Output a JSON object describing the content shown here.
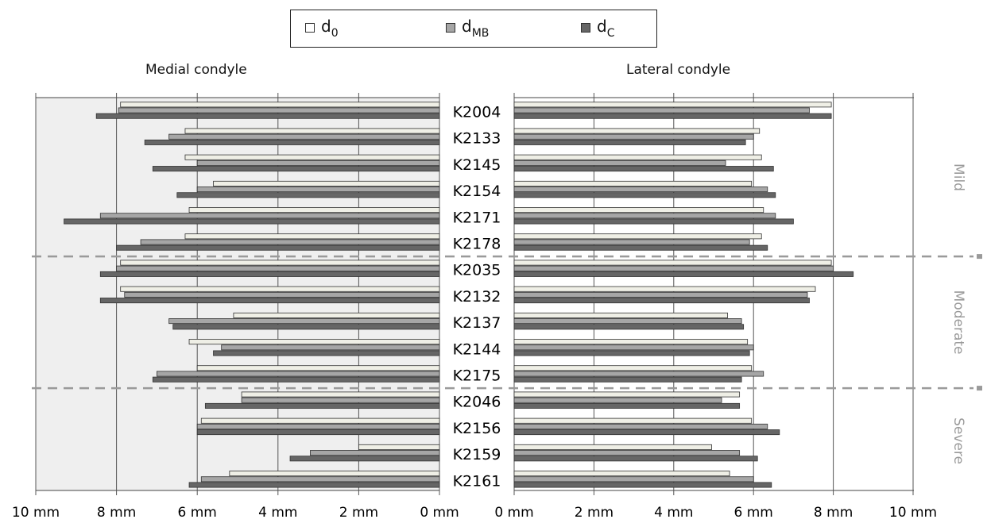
{
  "legend": {
    "items": [
      {
        "base": "d",
        "sub": "0",
        "color": "#efefe6"
      },
      {
        "base": "d",
        "sub": "MB",
        "color": "#a6a6a6"
      },
      {
        "base": "d",
        "sub": "C",
        "color": "#666666"
      }
    ]
  },
  "chart_data": {
    "type": "bar",
    "orientation": "horizontal",
    "panels": [
      {
        "title": "Medial condyle",
        "direction": "leftward",
        "xlim": [
          0,
          10
        ],
        "ticks": [
          "10 mm",
          "8 mm",
          "6 mm",
          "4 mm",
          "2 mm",
          "0 mm"
        ]
      },
      {
        "title": "Lateral condyle",
        "direction": "rightward",
        "xlim": [
          0,
          10
        ],
        "ticks": [
          "0 mm",
          "2 mm",
          "4 mm",
          "6 mm",
          "8 mm",
          "10 mm"
        ]
      }
    ],
    "categories": [
      "K2004",
      "K2133",
      "K2145",
      "K2154",
      "K2171",
      "K2178",
      "K2035",
      "K2132",
      "K2137",
      "K2144",
      "K2175",
      "K2046",
      "K2156",
      "K2159",
      "K2161"
    ],
    "groups": [
      {
        "name": "Mild",
        "start": 0,
        "end": 5
      },
      {
        "name": "Moderate",
        "start": 6,
        "end": 10
      },
      {
        "name": "Severe",
        "start": 11,
        "end": 14
      }
    ],
    "series": [
      {
        "name": "d0",
        "medial": [
          7.9,
          6.3,
          6.3,
          5.6,
          6.2,
          6.3,
          7.9,
          7.9,
          5.1,
          6.2,
          6.0,
          4.9,
          5.9,
          2.0,
          5.2
        ],
        "lateral": [
          7.95,
          6.15,
          6.2,
          5.95,
          6.25,
          6.2,
          7.95,
          7.55,
          5.35,
          5.85,
          5.95,
          5.65,
          5.95,
          4.95,
          5.4
        ]
      },
      {
        "name": "dMB",
        "medial": [
          7.95,
          6.7,
          6.0,
          6.0,
          8.4,
          7.4,
          8.0,
          7.8,
          6.7,
          5.4,
          7.0,
          4.9,
          6.0,
          3.2,
          5.9
        ],
        "lateral": [
          7.4,
          6.0,
          5.3,
          6.35,
          6.55,
          5.9,
          8.0,
          7.35,
          5.7,
          6.0,
          6.25,
          5.2,
          6.35,
          5.65,
          6.0
        ]
      },
      {
        "name": "dC",
        "medial": [
          8.5,
          7.3,
          7.1,
          6.5,
          9.3,
          8.0,
          8.4,
          8.4,
          6.6,
          5.6,
          7.1,
          5.8,
          6.0,
          3.7,
          6.2
        ],
        "lateral": [
          7.95,
          5.8,
          6.5,
          6.55,
          7.0,
          6.35,
          8.5,
          7.4,
          5.75,
          5.9,
          5.7,
          5.65,
          6.65,
          6.1,
          6.45
        ]
      }
    ]
  }
}
